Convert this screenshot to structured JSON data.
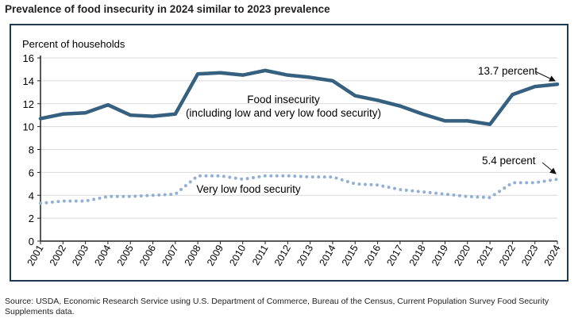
{
  "title": "Prevalence of food insecurity in 2024 similar to 2023 prevalence",
  "source": "Source: USDA, Economic Research Service using U.S. Department of Commerce, Bureau of the Census, Current Population Survey Food Security Supplements data.",
  "chart_data": {
    "type": "line",
    "ylabel": "Percent of households",
    "ylim": [
      0,
      16
    ],
    "yticks": [
      0,
      2,
      4,
      6,
      8,
      10,
      12,
      14,
      16
    ],
    "grid": true,
    "x": [
      "2001",
      "2002",
      "2003",
      "2004",
      "2005",
      "2006",
      "2007",
      "2008",
      "2009",
      "2010",
      "2011",
      "2012",
      "2013",
      "2014",
      "2015",
      "2016",
      "2017",
      "2018",
      "2019",
      "2020",
      "2021",
      "2022",
      "2023",
      "2024"
    ],
    "series": [
      {
        "name": "Food insecurity\n(including low and very low food security)",
        "color": "#35607f",
        "style": "solid",
        "values": [
          10.7,
          11.1,
          11.2,
          11.9,
          11.0,
          10.9,
          11.1,
          14.6,
          14.7,
          14.5,
          14.9,
          14.5,
          14.3,
          14.0,
          12.7,
          12.3,
          11.8,
          11.1,
          10.5,
          10.5,
          10.2,
          12.8,
          13.5,
          13.7
        ]
      },
      {
        "name": "Very low food security",
        "color": "#92b0d6",
        "style": "dotted",
        "values": [
          3.3,
          3.5,
          3.5,
          3.9,
          3.9,
          4.0,
          4.1,
          5.7,
          5.7,
          5.4,
          5.7,
          5.7,
          5.6,
          5.6,
          5.0,
          4.9,
          4.5,
          4.3,
          4.1,
          3.9,
          3.8,
          5.1,
          5.1,
          5.4
        ]
      }
    ],
    "annotations": [
      "13.7 percent",
      "5.4 percent"
    ]
  }
}
